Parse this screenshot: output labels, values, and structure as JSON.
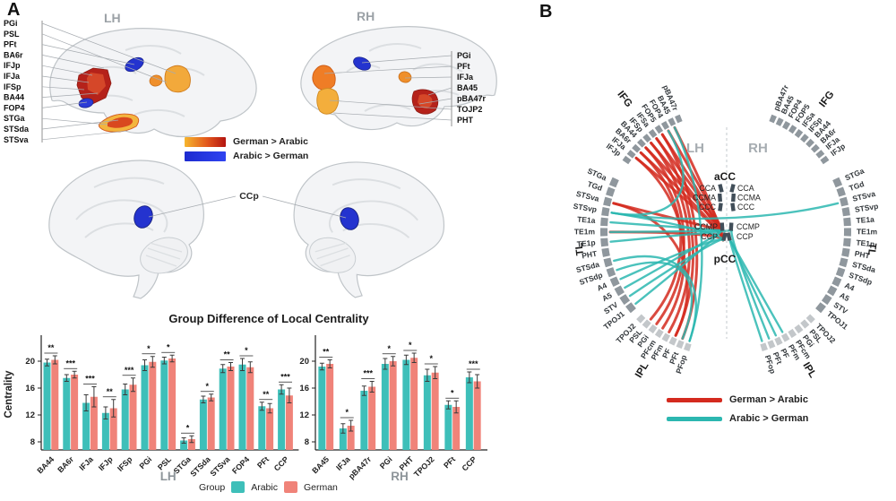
{
  "panelA": {
    "label": "A",
    "lh_title": "LH",
    "rh_title": "RH",
    "ccp_label": "CCp",
    "regions_lh": [
      "PGi",
      "PSL",
      "PFt",
      "BA6r",
      "IFJp",
      "IFJa",
      "IFSp",
      "BA44",
      "FOP4",
      "STGa",
      "STSda",
      "STSva"
    ],
    "regions_rh": [
      "PGi",
      "PFt",
      "IFJa",
      "BA45",
      "pBA47r",
      "TOJP2",
      "PHT"
    ],
    "legend": [
      {
        "label": "German > Arabic",
        "style": "warm-gradient"
      },
      {
        "label": "Arabic > German",
        "style": "blue-gradient"
      }
    ]
  },
  "chart_data": {
    "type": "bar",
    "title": "Group Difference of Local Centrality",
    "ylabel": "Centrality",
    "yticks": [
      8,
      12,
      16,
      20
    ],
    "ylim": [
      6.8,
      23.5
    ],
    "legend": {
      "title": "Group",
      "series": [
        "Arabic",
        "German"
      ]
    },
    "colors": {
      "Arabic": "#3ebfb9",
      "German": "#f08379"
    },
    "panels": [
      {
        "label": "LH",
        "categories": [
          "BA44",
          "BA6r",
          "IFJa",
          "IFJp",
          "IFSp",
          "PGi",
          "PSL",
          "STGa",
          "STSda",
          "STSva",
          "FOP4",
          "PFt",
          "CCP"
        ],
        "arabic": [
          19.8,
          17.5,
          13.8,
          12.3,
          15.8,
          19.4,
          20.1,
          8.2,
          14.3,
          18.9,
          19.5,
          13.3,
          15.8
        ],
        "german": [
          20.2,
          18.0,
          14.7,
          13.0,
          16.5,
          19.9,
          20.4,
          8.4,
          14.6,
          19.2,
          19.1,
          13.0,
          14.9
        ],
        "arabic_err": [
          0.5,
          0.5,
          1.2,
          0.9,
          0.8,
          0.8,
          0.5,
          0.4,
          0.5,
          0.6,
          0.9,
          0.6,
          0.7
        ],
        "german_err": [
          0.6,
          0.5,
          1.5,
          1.3,
          1.0,
          0.8,
          0.5,
          0.5,
          0.5,
          0.6,
          0.8,
          0.7,
          1.1
        ],
        "sig": [
          "**",
          "***",
          "***",
          "**",
          "***",
          "*",
          "*",
          "*",
          "*",
          "**",
          "*",
          "**",
          "***"
        ]
      },
      {
        "label": "RH",
        "categories": [
          "BA45",
          "IFJa",
          "pBA47r",
          "PGi",
          "PHT",
          "TPOJ2",
          "PFt",
          "CCP"
        ],
        "arabic": [
          19.2,
          10.0,
          15.6,
          19.6,
          20.2,
          17.9,
          13.5,
          17.6
        ],
        "german": [
          19.6,
          10.4,
          16.2,
          20.0,
          20.5,
          18.3,
          13.2,
          17.0
        ],
        "arabic_err": [
          0.5,
          0.7,
          0.7,
          0.8,
          0.7,
          0.9,
          0.6,
          0.8
        ],
        "german_err": [
          0.6,
          0.8,
          0.8,
          0.7,
          0.7,
          0.9,
          0.9,
          1.0
        ],
        "sig": [
          "**",
          "*",
          "***",
          "*",
          "*",
          "*",
          "*",
          "***"
        ]
      }
    ]
  },
  "panelB": {
    "label": "B",
    "lh_label": "LH",
    "rh_label": "RH",
    "acc": {
      "label": "aCC",
      "segments": [
        "CCA",
        "CCMA",
        "CCC"
      ]
    },
    "pcc": {
      "label": "pCC",
      "segments": [
        "CCMP",
        "CCP"
      ]
    },
    "groups": {
      "IFG": [
        "pBA47r",
        "BA45",
        "FOP4",
        "FOP5",
        "IFSa",
        "IFSp",
        "BA44",
        "BA6r",
        "IFJa",
        "IFJp"
      ],
      "TL": [
        "STGa",
        "TGd",
        "STSva",
        "STSvp",
        "TE1a",
        "TE1m",
        "TE1p",
        "PHT",
        "STSda",
        "STSdp",
        "A4",
        "A5",
        "STV",
        "TPOJ1"
      ],
      "IPL": [
        "TPOJ2",
        "PSL",
        "PGi",
        "PFcm",
        "PFm",
        "PF",
        "PFt",
        "PFop"
      ]
    },
    "chord_colors": {
      "red": "#d42a1e",
      "teal": "#2cb7b0"
    },
    "chords": {
      "red": [
        [
          "L:IFG:IFJa",
          "Lc:CCP"
        ],
        [
          "L:IFG:BA6r",
          "Lc:CCP"
        ],
        [
          "L:IFG:BA44",
          "Lc:CCMP"
        ],
        [
          "L:IFG:IFSp",
          "Lc:CCP"
        ],
        [
          "L:IFG:IFSa",
          "Lc:CCMP"
        ],
        [
          "L:IFG:FOP5",
          "Lc:CCP"
        ],
        [
          "L:IFG:FOP4",
          "Lc:CCMP"
        ],
        [
          "L:IFG:BA45",
          "Lc:CCP"
        ],
        [
          "L:IFG:BA44",
          "L:IPL:PGi"
        ],
        [
          "L:IFG:IFSp",
          "L:IPL:PFm"
        ],
        [
          "L:IFG:IFSa",
          "L:IPL:PF"
        ],
        [
          "L:IFG:FOP5",
          "L:IPL:PFt"
        ],
        [
          "L:IFG:IFJa",
          "L:IPL:PFcm"
        ],
        [
          "L:IFG:BA6r",
          "L:IPL:PSL"
        ],
        [
          "L:TL:STSva",
          "Lc:CCMP"
        ],
        [
          "L:TL:STSva",
          "L:IPL:PF"
        ],
        [
          "L:TL:TE1m",
          "Lc:CCP"
        ]
      ],
      "teal": [
        [
          "L:IFG:BA45",
          "L:IPL:PFop"
        ],
        [
          "L:IFG:FOP4",
          "L:TL:STSvp"
        ],
        [
          "L:TL:STSvp",
          "Lc:CCP"
        ],
        [
          "L:TL:TE1a",
          "Lc:CCMP"
        ],
        [
          "L:TL:TE1m",
          "Lc:CCMP"
        ],
        [
          "L:TL:TE1p",
          "Rc:CCMP"
        ],
        [
          "L:TL:STSvp",
          "R:TL:STSva"
        ],
        [
          "L:TL:STSda",
          "L:IPL:PFop"
        ],
        [
          "L:TL:STSdp",
          "L:IPL:PFt"
        ],
        [
          "L:TL:A4",
          "Lc:CCP"
        ],
        [
          "L:TL:A5",
          "Lc:CCMP"
        ],
        [
          "L:TL:STV",
          "Lc:CCP"
        ],
        [
          "L:TL:TPOJ1",
          "Lc:CCMP"
        ],
        [
          "Rc:CCP",
          "R:IPL:PFm"
        ],
        [
          "Rc:CCP",
          "R:IPL:PF"
        ],
        [
          "Rc:CCMP",
          "R:IPL:PFt"
        ],
        [
          "Rc:CCP",
          "R:IPL:PFop"
        ]
      ]
    },
    "legend": [
      {
        "label": "German > Arabic",
        "color": "#d42a1e"
      },
      {
        "label": "Arabic > German",
        "color": "#2cb7b0"
      }
    ]
  }
}
